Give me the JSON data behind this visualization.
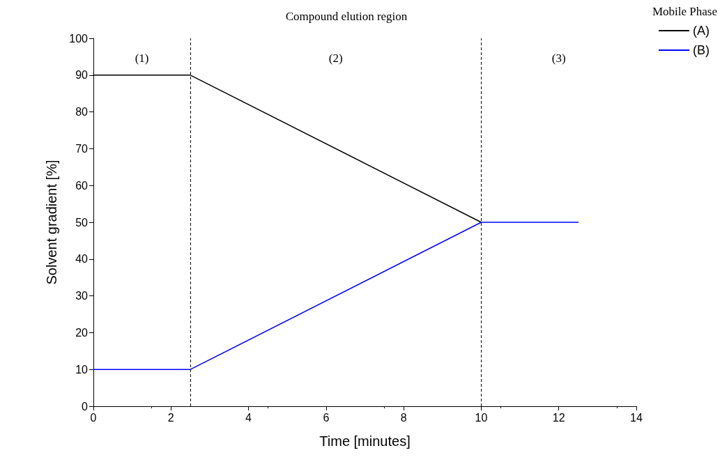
{
  "chart_data": {
    "type": "line",
    "title": "Compound elution region",
    "xlabel": "Time [minutes]",
    "ylabel": "Solvent gradient [%]",
    "legend_title": "Mobile Phase",
    "xlim": [
      0,
      14
    ],
    "xticks": [
      0,
      2,
      4,
      6,
      8,
      10,
      12,
      14
    ],
    "ylim": [
      0,
      100
    ],
    "yticks": [
      0,
      10,
      20,
      30,
      40,
      50,
      60,
      70,
      80,
      90,
      100
    ],
    "series": [
      {
        "name": "(A)",
        "color": "#000000",
        "x": [
          0,
          2.5,
          10
        ],
        "values": [
          90,
          90,
          50
        ]
      },
      {
        "name": "(B)",
        "color": "#0000ff",
        "x": [
          0,
          2.5,
          10,
          12.5
        ],
        "values": [
          10,
          10,
          50,
          50
        ]
      }
    ],
    "ref_lines": [
      {
        "axis": "x",
        "value": 2.5,
        "label": null,
        "color": "#000000",
        "line_style": "dashed"
      },
      {
        "axis": "x",
        "value": 10,
        "label": null,
        "color": "#000000",
        "line_style": "dashed"
      }
    ],
    "annotations": [
      "(1)",
      "(2)",
      "(3)"
    ],
    "grid": false,
    "legend": "top right",
    "marker": "none",
    "line_style": "solid"
  }
}
